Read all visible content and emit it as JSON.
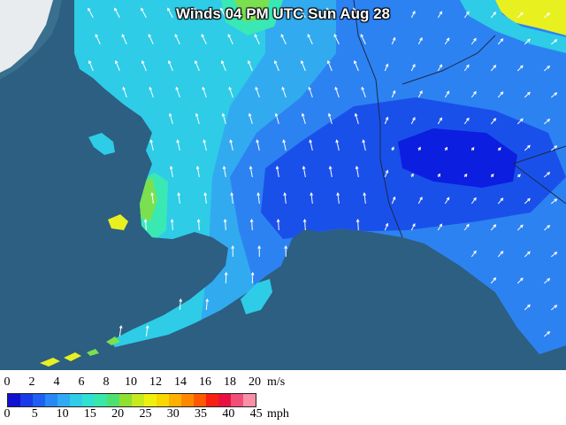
{
  "title": "Winds 04 PM UTC Sun Aug 28",
  "legend": {
    "ms_ticks": [
      "0",
      "2",
      "4",
      "6",
      "8",
      "10",
      "12",
      "14",
      "16",
      "18",
      "20"
    ],
    "ms_unit": "m/s",
    "mph_ticks": [
      "0",
      "5",
      "10",
      "15",
      "20",
      "25",
      "30",
      "35",
      "40",
      "45"
    ],
    "mph_unit": "mph",
    "colors": [
      "#1010d0",
      "#1a3ae8",
      "#2060f0",
      "#2888f5",
      "#30aaf5",
      "#30cce8",
      "#30e0d0",
      "#38e8a8",
      "#50e070",
      "#90e030",
      "#c8e820",
      "#f0f010",
      "#f8d800",
      "#ffb000",
      "#ff8800",
      "#ff5800",
      "#f82010",
      "#e81040",
      "#f05078",
      "#f890a8"
    ]
  },
  "map": {
    "ocean_color": "#2c5f82",
    "land_color": "#3a6f8e",
    "wind_colors": {
      "calm": "#0c1ee0",
      "light": "#1a50ea",
      "moderate": "#2d82f2",
      "fresh": "#32aaf0",
      "breezy": "#2ecce6",
      "strong": "#3ae8b4",
      "gusty": "#7ae050",
      "high": "#e8f020"
    }
  }
}
